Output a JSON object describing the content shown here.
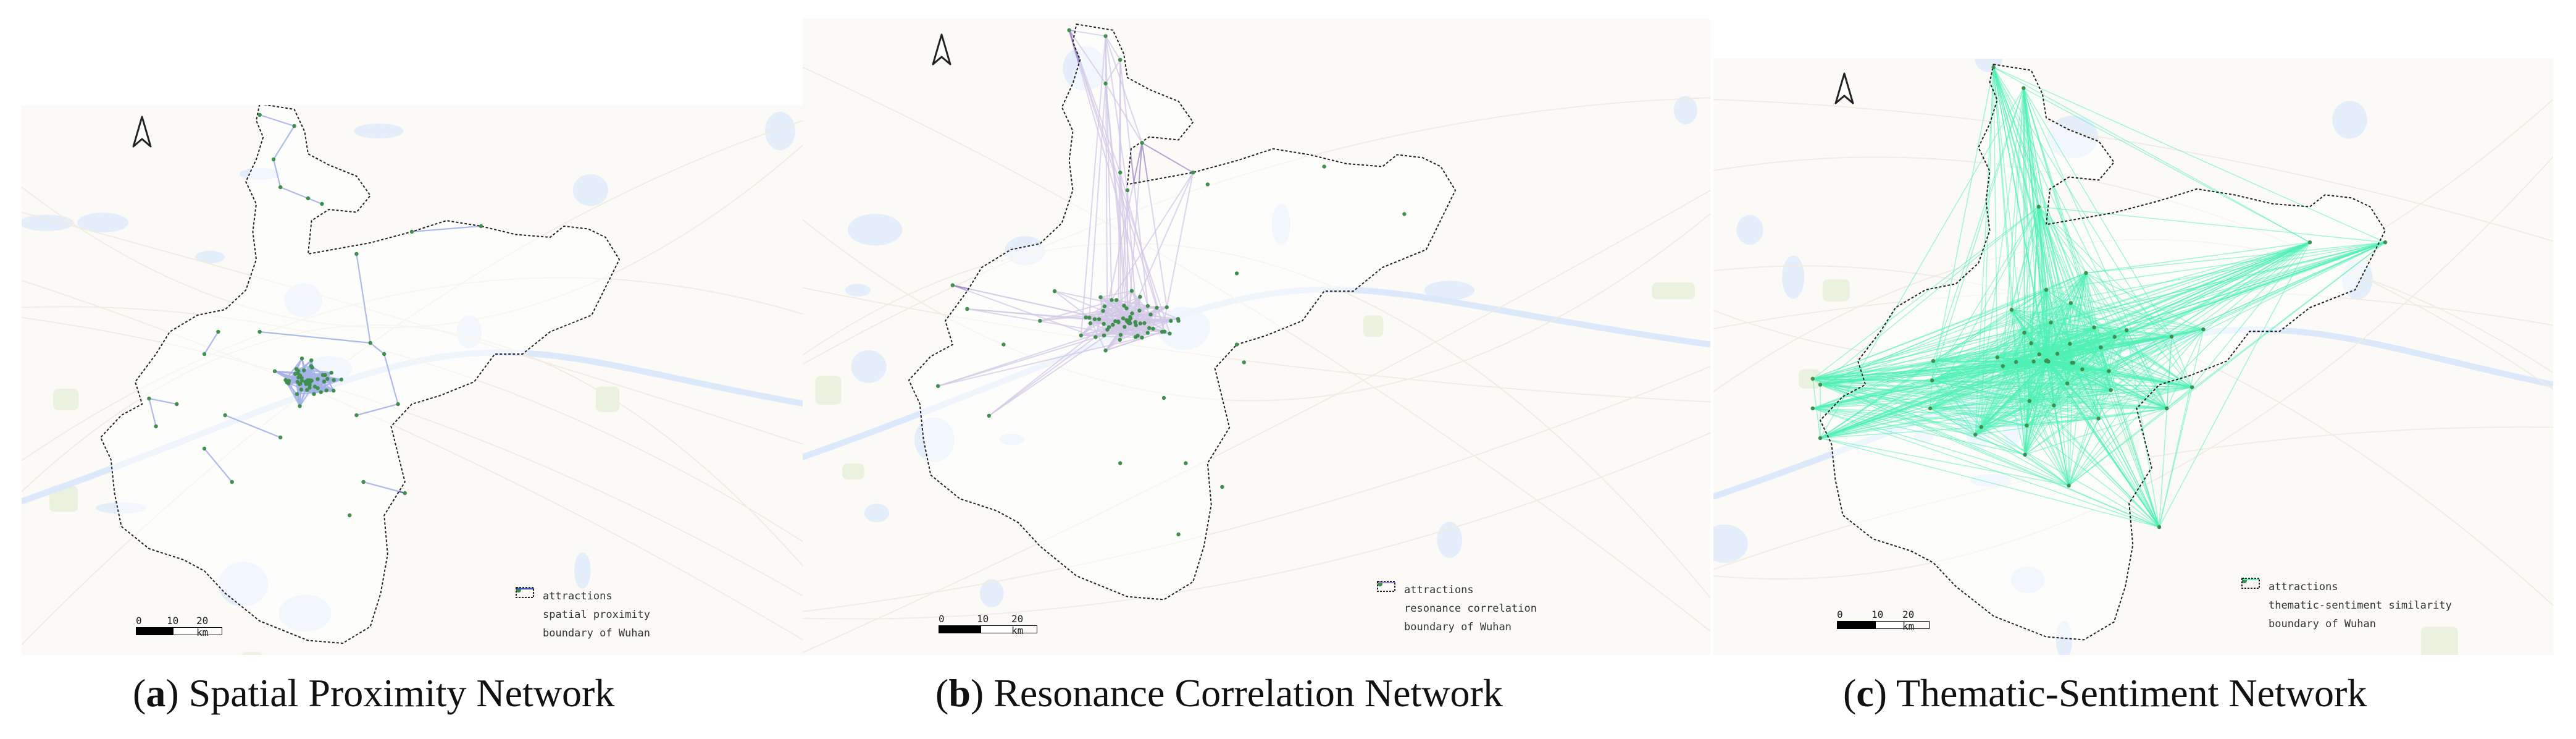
{
  "panels": [
    {
      "id": "a",
      "letter": "a",
      "title": "Spatial Proximity Network",
      "legend": {
        "nodes": "attractions",
        "edges": "spatial proximity",
        "boundary": "boundary of Wuhan"
      },
      "scale": {
        "ticks": [
          "0",
          "10",
          "20 km"
        ]
      },
      "edge_color": "#3a56c8",
      "node_color": "#3f8f4f"
    },
    {
      "id": "b",
      "letter": "b",
      "title": "Resonance Correlation Network",
      "legend": {
        "nodes": "attractions",
        "edges": "resonance correlation",
        "boundary": "boundary of Wuhan"
      },
      "scale": {
        "ticks": [
          "0",
          "10",
          "20 km"
        ]
      },
      "edge_color": "#9c86c8",
      "node_color": "#3f8f4f"
    },
    {
      "id": "c",
      "letter": "c",
      "title": "Thematic-Sentiment Network",
      "legend": {
        "nodes": "attractions",
        "edges": "thematic-sentiment similarity",
        "boundary": "boundary of Wuhan"
      },
      "scale": {
        "ticks": [
          "0",
          "10",
          "20 km"
        ]
      },
      "edge_color": "#4ff0b4",
      "node_color": "#3f8f4f"
    }
  ]
}
